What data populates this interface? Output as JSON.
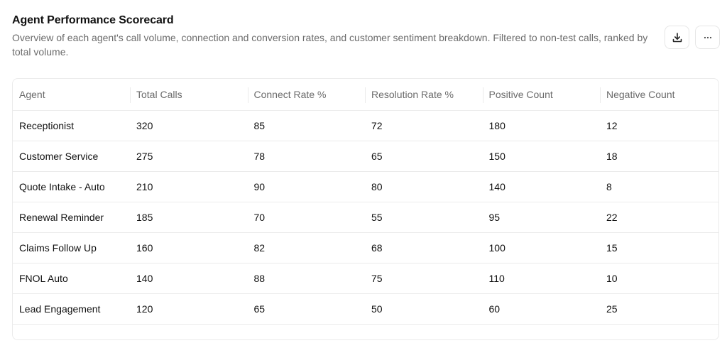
{
  "header": {
    "title": "Agent Performance Scorecard",
    "subtitle": "Overview of each agent's call volume, connection and conversion rates, and customer sentiment breakdown. Filtered to non-test calls, ranked by total volume."
  },
  "toolbar": {
    "download_icon": "download-icon",
    "more_icon": "more-horizontal-icon"
  },
  "table": {
    "columns": [
      "Agent",
      "Total Calls",
      "Connect Rate %",
      "Resolution Rate %",
      "Positive Count",
      "Negative Count"
    ],
    "rows": [
      [
        "Receptionist",
        "320",
        "85",
        "72",
        "180",
        "12"
      ],
      [
        "Customer Service",
        "275",
        "78",
        "65",
        "150",
        "18"
      ],
      [
        "Quote Intake - Auto",
        "210",
        "90",
        "80",
        "140",
        "8"
      ],
      [
        "Renewal Reminder",
        "185",
        "70",
        "55",
        "95",
        "22"
      ],
      [
        "Claims Follow Up",
        "160",
        "82",
        "68",
        "100",
        "15"
      ],
      [
        "FNOL Auto",
        "140",
        "88",
        "75",
        "110",
        "10"
      ],
      [
        "Lead Engagement",
        "120",
        "65",
        "50",
        "60",
        "25"
      ]
    ]
  },
  "colors": {
    "text": "#111111",
    "muted": "#6b6b6b",
    "border": "#ebebeb"
  }
}
